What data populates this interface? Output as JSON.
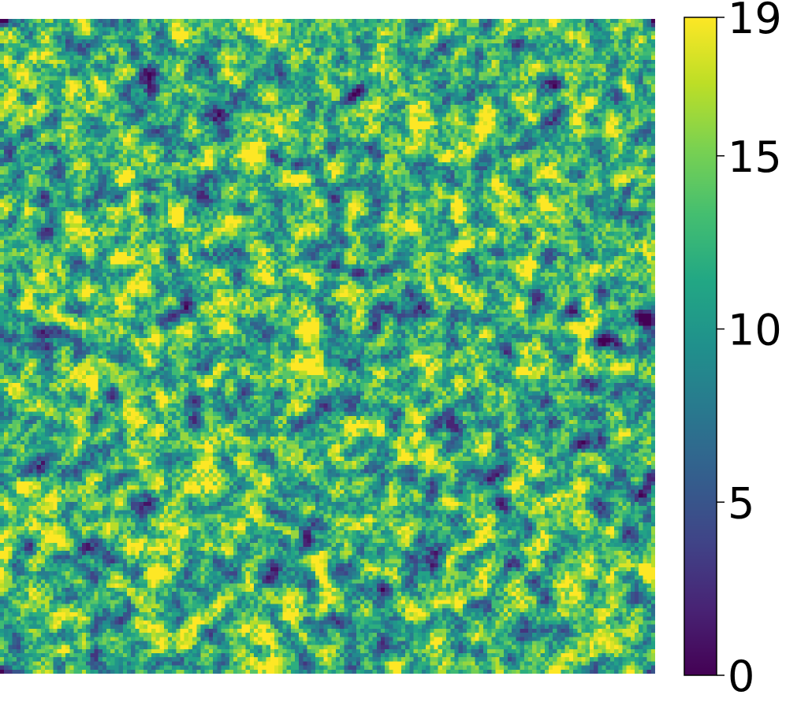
{
  "chart_data": {
    "type": "heatmap",
    "title": "",
    "xlabel": "",
    "ylabel": "",
    "colormap": "viridis",
    "clim": [
      0,
      19
    ],
    "grid": false,
    "axes_visible": false,
    "colorbar": {
      "location": "right",
      "ticks": [
        0,
        5,
        10,
        15,
        19
      ],
      "tick_labels": [
        "0",
        "5",
        "10",
        "15",
        "19"
      ]
    },
    "colors": {
      "low": "#440154",
      "mid": "#21918c",
      "high": "#fde725"
    },
    "description_values": {
      "rows": 160,
      "cols": 160
    }
  }
}
